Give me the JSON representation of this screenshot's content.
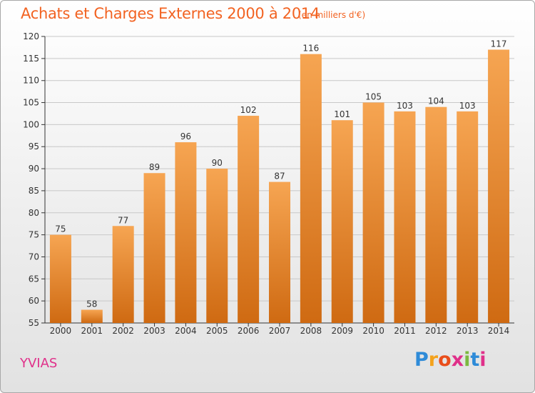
{
  "header": {
    "title": "Achats et Charges Externes 2000 à 2014",
    "subtitle": "(en milliers d'€)"
  },
  "footer": {
    "location": "YVIAS",
    "logo": {
      "letters": [
        "P",
        "r",
        "o",
        "x",
        "i",
        "t",
        "i"
      ],
      "colors": [
        "#2e8bd8",
        "#f4a21c",
        "#e94e1b",
        "#e0308a",
        "#7cb940",
        "#2e8bd8",
        "#e0308a"
      ]
    }
  },
  "colors": {
    "bar_top": "#f6a552",
    "bar_bottom": "#cf6a12",
    "grid": "#c8c8c8",
    "title": "#f26322"
  },
  "chart_data": {
    "type": "bar",
    "categories": [
      "2000",
      "2001",
      "2002",
      "2003",
      "2004",
      "2005",
      "2006",
      "2007",
      "2008",
      "2009",
      "2010",
      "2011",
      "2012",
      "2013",
      "2014"
    ],
    "values": [
      75,
      58,
      77,
      89,
      96,
      90,
      102,
      87,
      116,
      101,
      105,
      103,
      104,
      103,
      117
    ],
    "ylim": [
      55,
      120
    ],
    "yticks": [
      55,
      60,
      65,
      70,
      75,
      80,
      85,
      90,
      95,
      100,
      105,
      110,
      115,
      120
    ],
    "grid": true
  }
}
